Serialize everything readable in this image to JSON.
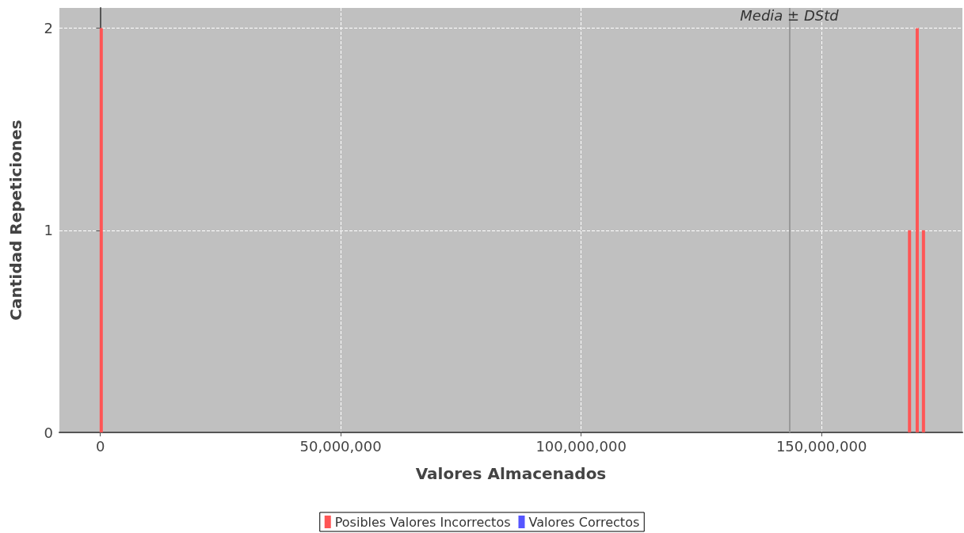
{
  "chart_data": {
    "type": "bar",
    "xlabel": "Valores Almacenados",
    "ylabel": "Cantidad Repeticiones",
    "x": [
      200000,
      168300000,
      169900000,
      171200000
    ],
    "series": [
      {
        "name": "Posibles Valores Incorrectos",
        "color": "#ff5555",
        "values": [
          2,
          1,
          2,
          1
        ]
      },
      {
        "name": "Valores Correctos",
        "color": "#5555ff",
        "values": [
          null,
          null,
          null,
          null
        ]
      }
    ],
    "xlim": [
      -8500000,
      179300000
    ],
    "xticks": [
      {
        "value": 0,
        "label": "0"
      },
      {
        "value": 50000000,
        "label": "50,000,000"
      },
      {
        "value": 100000000,
        "label": "100,000,000"
      },
      {
        "value": 150000000,
        "label": "150,000,000"
      }
    ],
    "ylim": [
      0,
      2.1
    ],
    "yticks": [
      0,
      1,
      2
    ],
    "ref_lines": [
      {
        "axis": "x",
        "value": 0,
        "label": null,
        "color": "#555555"
      },
      {
        "axis": "x",
        "value": 143300000,
        "label": "Media ± DStd",
        "color": "#999999"
      }
    ],
    "grid": true,
    "legend": "bottom"
  }
}
